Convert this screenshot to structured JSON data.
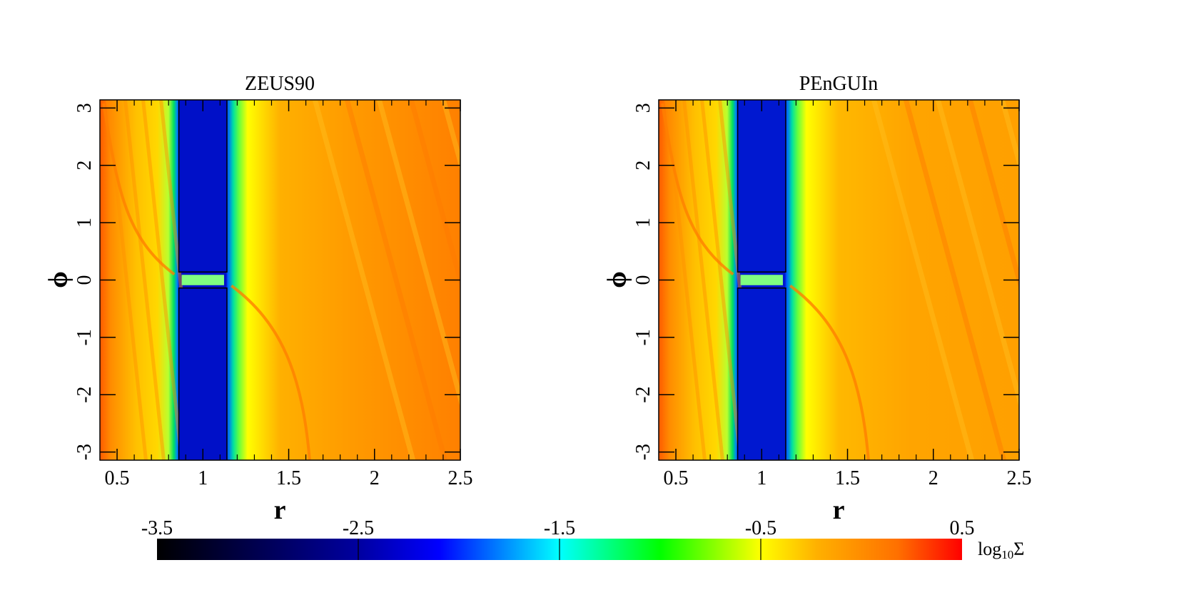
{
  "chart_data": [
    {
      "type": "heatmap",
      "title": "ZEUS90",
      "xlabel": "r",
      "ylabel": "ϕ",
      "xlim": [
        0.4,
        2.5
      ],
      "ylim": [
        -3.1416,
        3.1416
      ],
      "xticks": [
        0.5,
        1,
        1.5,
        2,
        2.5
      ],
      "xtick_labels": [
        "0.5",
        "1",
        "1.5",
        "2",
        "2.5"
      ],
      "yticks": [
        -3,
        -2,
        -1,
        0,
        1,
        2,
        3
      ],
      "ytick_labels": [
        "-3",
        "-2",
        "-1",
        "0",
        "1",
        "2",
        "3"
      ],
      "gap": {
        "r_inner": 0.86,
        "r_outer": 1.14,
        "phi_half_width": 0.14
      },
      "field": "log10Σ"
    },
    {
      "type": "heatmap",
      "title": "PEnGUIn",
      "xlabel": "r",
      "ylabel": "ϕ",
      "xlim": [
        0.4,
        2.5
      ],
      "ylim": [
        -3.1416,
        3.1416
      ],
      "xticks": [
        0.5,
        1,
        1.5,
        2,
        2.5
      ],
      "xtick_labels": [
        "0.5",
        "1",
        "1.5",
        "2",
        "2.5"
      ],
      "yticks": [
        -3,
        -2,
        -1,
        0,
        1,
        2,
        3
      ],
      "ytick_labels": [
        "-3",
        "-2",
        "-1",
        "0",
        "1",
        "2",
        "3"
      ],
      "gap": {
        "r_inner": 0.86,
        "r_outer": 1.14,
        "phi_half_width": 0.14
      },
      "field": "log10Σ"
    }
  ],
  "colorbar": {
    "label_prefix": "log",
    "label_sub": "10",
    "label_symbol": "Σ",
    "range": [
      -3.5,
      0.5
    ],
    "ticks": [
      -3.5,
      -2.5,
      -1.5,
      -0.5,
      0.5
    ],
    "tick_labels": [
      "-3.5",
      "-2.5",
      "-1.5",
      "-0.5",
      "0.5"
    ],
    "colormap": [
      [
        -3.5,
        "#000000"
      ],
      [
        -2.5,
        "#0000a0"
      ],
      [
        -2.1,
        "#0000ff"
      ],
      [
        -1.5,
        "#00ffff"
      ],
      [
        -1.0,
        "#00ff00"
      ],
      [
        -0.5,
        "#ffff00"
      ],
      [
        -0.2,
        "#ffb000"
      ],
      [
        0.2,
        "#ff7000"
      ],
      [
        0.5,
        "#ff0000"
      ]
    ]
  }
}
